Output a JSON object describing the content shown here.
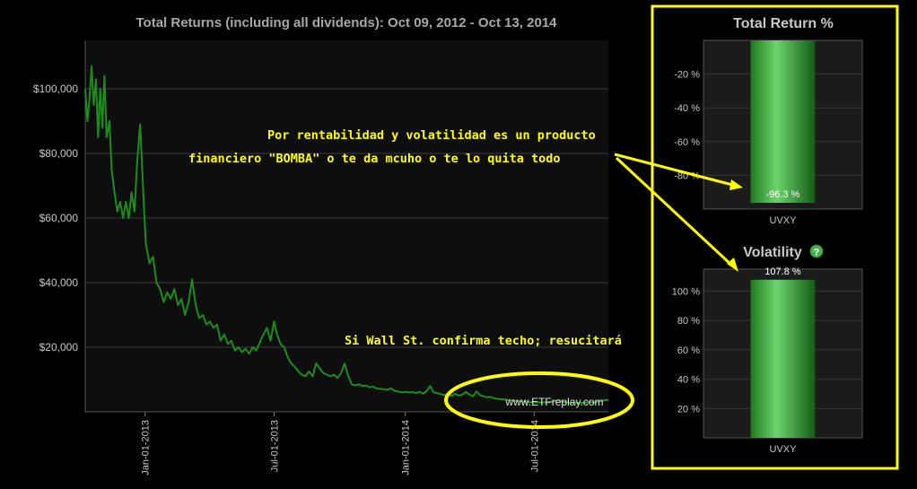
{
  "colors": {
    "background": "#000000",
    "plot_bg": "#0e0e0e",
    "line": "#1c8c1c",
    "grid": "#3c3c3c",
    "axis_text": "#c8c8c8",
    "title_text": "#a8a8a8",
    "annotation": "#ffff00",
    "bar_green": "#2ea02e",
    "panel_bg": "#1b1b1b"
  },
  "chart_data": [
    {
      "type": "line",
      "title": "Total Returns (including all dividends): Oct 09, 2012 - Oct 13, 2014",
      "xlabel": "",
      "ylabel": "",
      "x_ticks": [
        "Jan-01-2013",
        "Jul-01-2013",
        "Jan-01-2014",
        "Jul-01-2014"
      ],
      "y_ticks": [
        "$20,000",
        "$40,000",
        "$60,000",
        "$80,000",
        "$100,000"
      ],
      "xlim": [
        "2012-10-09",
        "2014-10-13"
      ],
      "ylim": [
        0,
        115000
      ],
      "grid": true,
      "watermark": "www.ETFreplay.com",
      "series": [
        {
          "values": [
            [
              "2012-10-09",
              100000
            ],
            [
              "2012-10-12",
              90000
            ],
            [
              "2012-10-15",
              97000
            ],
            [
              "2012-10-18",
              107000
            ],
            [
              "2012-10-21",
              95000
            ],
            [
              "2012-10-24",
              103000
            ],
            [
              "2012-10-27",
              85000
            ],
            [
              "2012-10-30",
              100000
            ],
            [
              "2012-11-02",
              88000
            ],
            [
              "2012-11-05",
              104000
            ],
            [
              "2012-11-08",
              85000
            ],
            [
              "2012-11-12",
              90000
            ],
            [
              "2012-11-15",
              75000
            ],
            [
              "2012-11-19",
              68000
            ],
            [
              "2012-11-23",
              62000
            ],
            [
              "2012-11-27",
              65000
            ],
            [
              "2012-12-01",
              60000
            ],
            [
              "2012-12-05",
              65000
            ],
            [
              "2012-12-09",
              60000
            ],
            [
              "2012-12-13",
              68000
            ],
            [
              "2012-12-17",
              62000
            ],
            [
              "2012-12-21",
              78000
            ],
            [
              "2012-12-25",
              89000
            ],
            [
              "2012-12-29",
              70000
            ],
            [
              "2013-01-02",
              52000
            ],
            [
              "2013-01-07",
              46000
            ],
            [
              "2013-01-12",
              48000
            ],
            [
              "2013-01-17",
              40000
            ],
            [
              "2013-01-22",
              38000
            ],
            [
              "2013-01-27",
              34000
            ],
            [
              "2013-02-01",
              37000
            ],
            [
              "2013-02-06",
              35000
            ],
            [
              "2013-02-11",
              38000
            ],
            [
              "2013-02-16",
              33000
            ],
            [
              "2013-02-21",
              35000
            ],
            [
              "2013-02-26",
              30000
            ],
            [
              "2013-03-03",
              34000
            ],
            [
              "2013-03-08",
              41000
            ],
            [
              "2013-03-13",
              33000
            ],
            [
              "2013-03-18",
              29000
            ],
            [
              "2013-03-23",
              30000
            ],
            [
              "2013-03-28",
              27000
            ],
            [
              "2013-04-02",
              28000
            ],
            [
              "2013-04-07",
              26000
            ],
            [
              "2013-04-12",
              27000
            ],
            [
              "2013-04-17",
              22000
            ],
            [
              "2013-04-22",
              24000
            ],
            [
              "2013-04-27",
              21000
            ],
            [
              "2013-05-02",
              22000
            ],
            [
              "2013-05-07",
              19000
            ],
            [
              "2013-05-12",
              20000
            ],
            [
              "2013-05-17",
              18500
            ],
            [
              "2013-05-22",
              19500
            ],
            [
              "2013-05-27",
              18000
            ],
            [
              "2013-06-01",
              20000
            ],
            [
              "2013-06-06",
              19000
            ],
            [
              "2013-06-11",
              21500
            ],
            [
              "2013-06-16",
              24000
            ],
            [
              "2013-06-21",
              26000
            ],
            [
              "2013-06-26",
              22000
            ],
            [
              "2013-07-01",
              28000
            ],
            [
              "2013-07-05",
              24000
            ],
            [
              "2013-07-10",
              21000
            ],
            [
              "2013-07-15",
              20000
            ],
            [
              "2013-07-20",
              17000
            ],
            [
              "2013-07-25",
              15000
            ],
            [
              "2013-07-30",
              14000
            ],
            [
              "2013-08-04",
              12500
            ],
            [
              "2013-08-09",
              11500
            ],
            [
              "2013-08-14",
              11000
            ],
            [
              "2013-08-19",
              12500
            ],
            [
              "2013-08-24",
              11000
            ],
            [
              "2013-08-29",
              15000
            ],
            [
              "2013-09-03",
              13500
            ],
            [
              "2013-09-08",
              12000
            ],
            [
              "2013-09-13",
              11500
            ],
            [
              "2013-09-18",
              11000
            ],
            [
              "2013-09-23",
              11500
            ],
            [
              "2013-09-28",
              10500
            ],
            [
              "2013-10-03",
              12000
            ],
            [
              "2013-10-08",
              15000
            ],
            [
              "2013-10-13",
              11000
            ],
            [
              "2013-10-18",
              8500
            ],
            [
              "2013-10-23",
              8200
            ],
            [
              "2013-10-28",
              8500
            ],
            [
              "2013-11-02",
              8000
            ],
            [
              "2013-11-07",
              8100
            ],
            [
              "2013-11-12",
              7600
            ],
            [
              "2013-11-17",
              7800
            ],
            [
              "2013-11-22",
              7200
            ],
            [
              "2013-11-27",
              7100
            ],
            [
              "2013-12-02",
              7000
            ],
            [
              "2013-12-07",
              6800
            ],
            [
              "2013-12-12",
              7300
            ],
            [
              "2013-12-17",
              6500
            ],
            [
              "2013-12-22",
              6300
            ],
            [
              "2013-12-27",
              6000
            ],
            [
              "2014-01-01",
              6200
            ],
            [
              "2014-01-06",
              6000
            ],
            [
              "2014-01-11",
              6100
            ],
            [
              "2014-01-16",
              5800
            ],
            [
              "2014-01-21",
              6200
            ],
            [
              "2014-01-26",
              5600
            ],
            [
              "2014-01-31",
              6400
            ],
            [
              "2014-02-05",
              8000
            ],
            [
              "2014-02-10",
              6000
            ],
            [
              "2014-02-15",
              5800
            ],
            [
              "2014-02-20",
              5500
            ],
            [
              "2014-02-25",
              5200
            ],
            [
              "2014-03-02",
              5500
            ],
            [
              "2014-03-07",
              4900
            ],
            [
              "2014-03-12",
              5600
            ],
            [
              "2014-03-17",
              5000
            ],
            [
              "2014-03-22",
              5300
            ],
            [
              "2014-03-27",
              6200
            ],
            [
              "2014-04-01",
              5400
            ],
            [
              "2014-04-06",
              4800
            ],
            [
              "2014-04-11",
              6300
            ],
            [
              "2014-04-16",
              5200
            ],
            [
              "2014-04-21",
              4800
            ],
            [
              "2014-04-26",
              4500
            ],
            [
              "2014-05-01",
              4600
            ],
            [
              "2014-05-06",
              4200
            ],
            [
              "2014-05-11",
              4000
            ],
            [
              "2014-05-16",
              3900
            ],
            [
              "2014-05-21",
              3800
            ],
            [
              "2014-05-26",
              3700
            ],
            [
              "2014-05-31",
              3600
            ],
            [
              "2014-06-05",
              3400
            ],
            [
              "2014-06-10",
              3300
            ],
            [
              "2014-06-15",
              3200
            ],
            [
              "2014-06-20",
              3100
            ],
            [
              "2014-06-25",
              3000
            ],
            [
              "2014-06-30",
              3100
            ],
            [
              "2014-07-05",
              3000
            ],
            [
              "2014-07-10",
              2900
            ],
            [
              "2014-07-15",
              3000
            ],
            [
              "2014-07-20",
              2900
            ],
            [
              "2014-07-25",
              3100
            ],
            [
              "2014-07-30",
              3300
            ],
            [
              "2014-08-04",
              3700
            ],
            [
              "2014-08-09",
              3200
            ],
            [
              "2014-08-14",
              3000
            ],
            [
              "2014-08-19",
              2900
            ],
            [
              "2014-08-24",
              2800
            ],
            [
              "2014-08-29",
              2800
            ],
            [
              "2014-09-03",
              2700
            ],
            [
              "2014-09-08",
              2800
            ],
            [
              "2014-09-13",
              2900
            ],
            [
              "2014-09-18",
              3000
            ],
            [
              "2014-09-23",
              2900
            ],
            [
              "2014-09-28",
              3100
            ],
            [
              "2014-10-03",
              3400
            ],
            [
              "2014-10-08",
              3600
            ],
            [
              "2014-10-13",
              3700
            ]
          ]
        }
      ]
    },
    {
      "type": "bar",
      "title": "Total Return %",
      "categories": [
        "UVXY"
      ],
      "values": [
        -96.3
      ],
      "value_labels": [
        "-96.3 %"
      ],
      "y_ticks": [
        "-20 %",
        "-40 %",
        "-60 %",
        "-80 %"
      ],
      "ylim": [
        -100,
        0
      ],
      "grid": true
    },
    {
      "type": "bar",
      "title": "Volatility",
      "help_icon": "question-icon",
      "categories": [
        "UVXY"
      ],
      "values": [
        107.8
      ],
      "value_labels": [
        "107.8 %"
      ],
      "y_ticks": [
        "20 %",
        "40 %",
        "60 %",
        "80 %",
        "100 %"
      ],
      "ylim": [
        0,
        115
      ],
      "grid": true
    }
  ],
  "annotations": {
    "line1": "Por rentabilidad y volatilidad es un producto",
    "line2": "financiero \"BOMBA\" o te da mcuho  o te lo quita todo",
    "line3": "Si Wall St. confirma techo; resucitará"
  }
}
